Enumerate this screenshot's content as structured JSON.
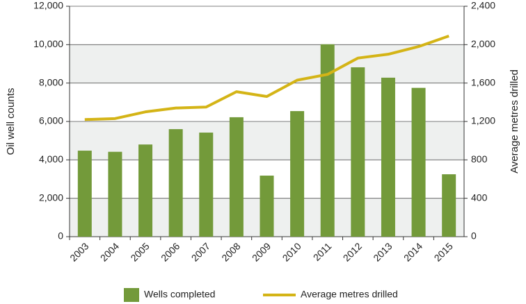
{
  "chart_data": {
    "type": "bar-line",
    "categories": [
      "2003",
      "2004",
      "2005",
      "2006",
      "2007",
      "2008",
      "2009",
      "2010",
      "2011",
      "2012",
      "2013",
      "2014",
      "2015"
    ],
    "ylabel": "Oil well counts",
    "y2label": "Average metres drilled",
    "series": [
      {
        "name": "Wells completed",
        "type": "bar",
        "color": "#739a3a",
        "values": [
          4480,
          4420,
          4800,
          5600,
          5420,
          6220,
          3180,
          6540,
          10020,
          8820,
          8280,
          7750,
          3250
        ]
      },
      {
        "name": "Average metres drilled",
        "type": "line",
        "axis": "y2",
        "color": "#d4b416",
        "values": [
          1220,
          1230,
          1300,
          1340,
          1350,
          1510,
          1460,
          1630,
          1690,
          1860,
          1900,
          1980,
          2090
        ]
      }
    ],
    "ylim": [
      0,
      12000
    ],
    "yticks": [
      0,
      {
        "value": 2000,
        "label": "2,000"
      },
      {
        "value": 4000,
        "label": "4,000"
      },
      {
        "value": 6000,
        "label": "6,000"
      },
      {
        "value": 8000,
        "label": "8,000"
      },
      {
        "value": 10000,
        "label": "10,000"
      },
      {
        "value": 12000,
        "label": "12,000"
      }
    ],
    "y2lim": [
      0,
      2400
    ],
    "y2ticks": [
      0,
      400,
      800,
      {
        "value": 1200,
        "label": "1,200"
      },
      {
        "value": 1600,
        "label": "1,600"
      },
      {
        "value": 2000,
        "label": "2,000"
      },
      {
        "value": 2400,
        "label": "2,400"
      }
    ],
    "grid": true,
    "legend": "bottom"
  }
}
